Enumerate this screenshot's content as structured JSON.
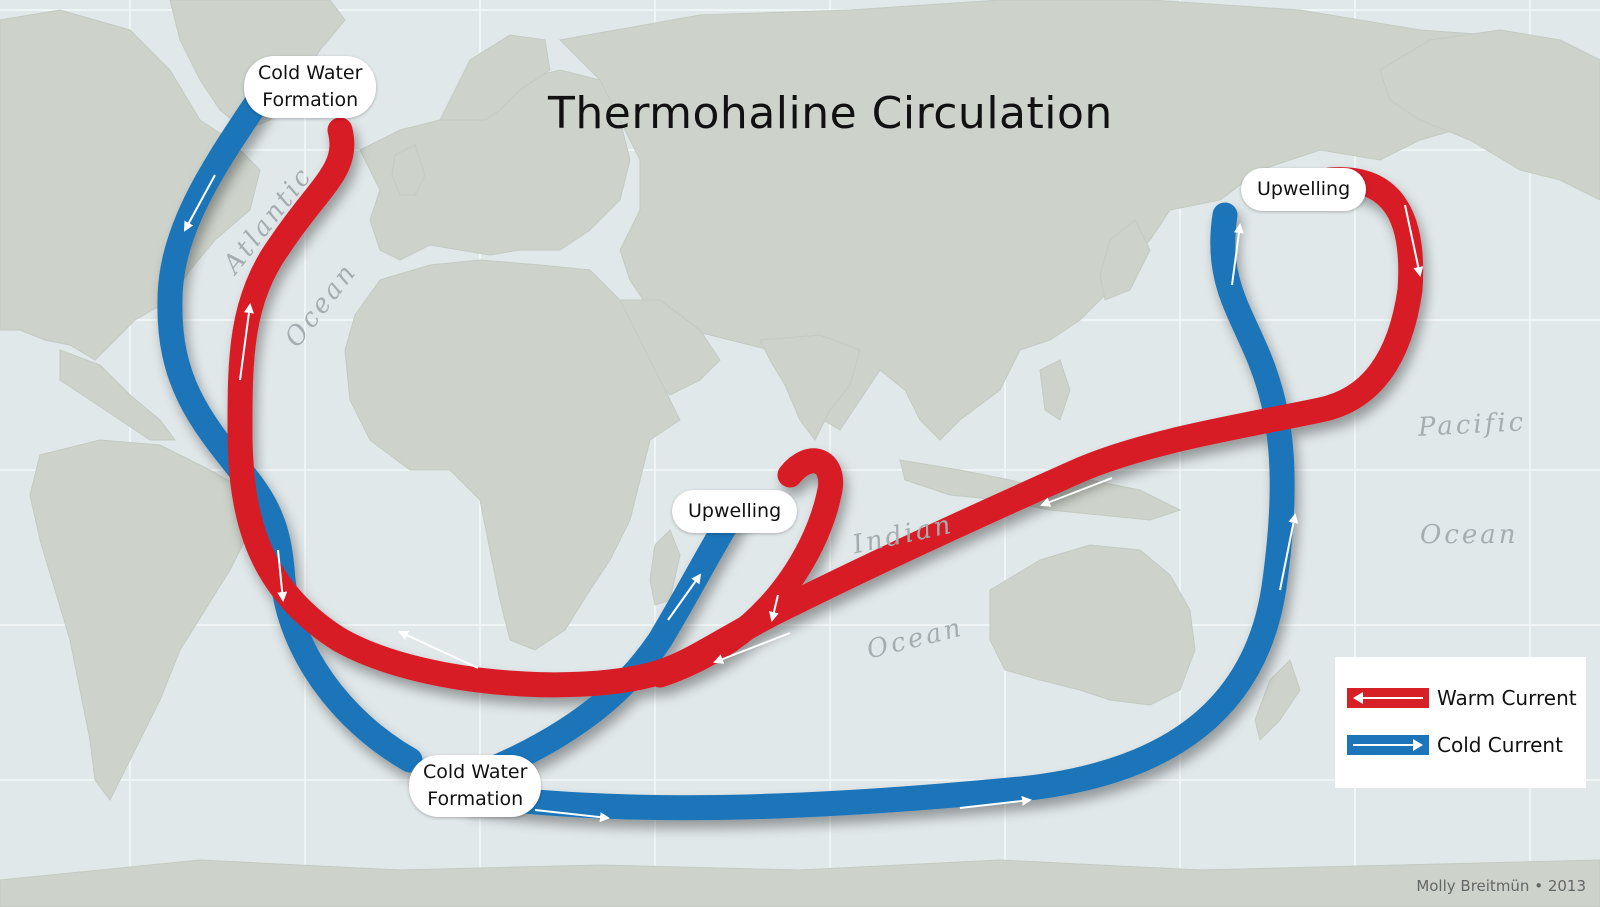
{
  "map": {
    "title": "Thermohaline Circulation",
    "background_ocean_color": "#e1e8ea",
    "land_color": "#cdd3cb",
    "credit": "Molly Breitmün • 2013",
    "ocean_labels": {
      "atlantic_1": "Atlantic",
      "atlantic_2": "Ocean",
      "indian_1": "Indian",
      "indian_2": "Ocean",
      "pacific_1": "Pacific",
      "pacific_2": "Ocean"
    },
    "bubbles": {
      "cold_water_north_line1": "Cold  Water",
      "cold_water_north_line2": "Formation",
      "cold_water_south_line1": "Cold  Water",
      "cold_water_south_line2": "Formation",
      "upwelling_indian": "Upwelling",
      "upwelling_pacific": "Upwelling"
    },
    "legend": {
      "warm_label": "Warm Current",
      "cold_label": "Cold Current",
      "warm_color": "#d71f26",
      "cold_color": "#1b75b8"
    }
  }
}
